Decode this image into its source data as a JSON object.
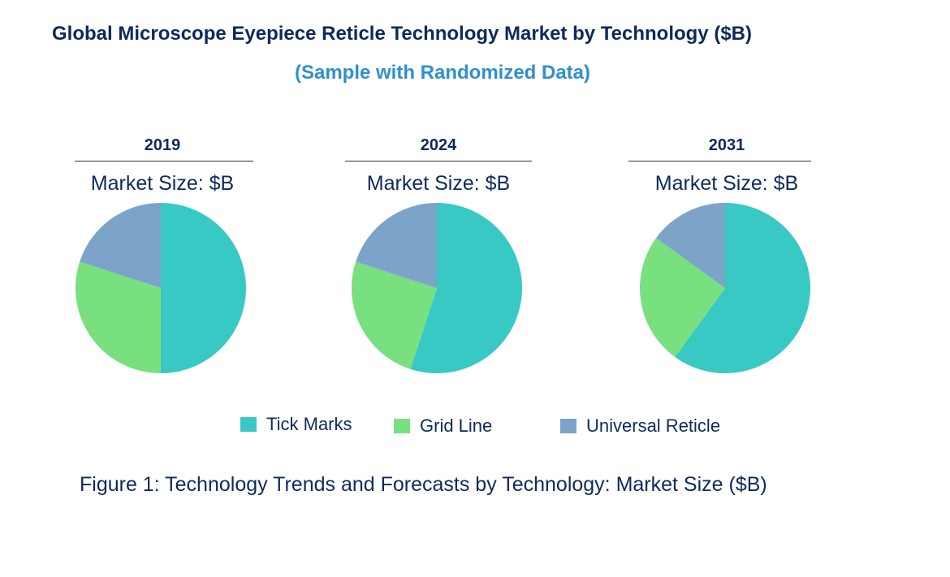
{
  "header": {
    "title": "Global Microscope Eyepiece Reticle Technology Market by Technology ($B)",
    "subtitle": "(Sample with Randomized Data)"
  },
  "chart_data": {
    "type": "pie",
    "series_names": [
      "Tick Marks",
      "Grid Line",
      "Universal Reticle"
    ],
    "colors": [
      "#38c9c5",
      "#79e07f",
      "#7ba4c8"
    ],
    "pies": [
      {
        "year": "2019",
        "label": "Market Size: $B",
        "values": [
          50,
          30,
          20
        ]
      },
      {
        "year": "2024",
        "label": "Market Size: $B",
        "values": [
          55,
          25,
          20
        ]
      },
      {
        "year": "2031",
        "label": "Market Size: $B",
        "values": [
          60,
          25,
          15
        ]
      }
    ],
    "legend_position": "bottom"
  },
  "caption": "Figure 1: Technology Trends and Forecasts by Technology: Market Size ($B)"
}
